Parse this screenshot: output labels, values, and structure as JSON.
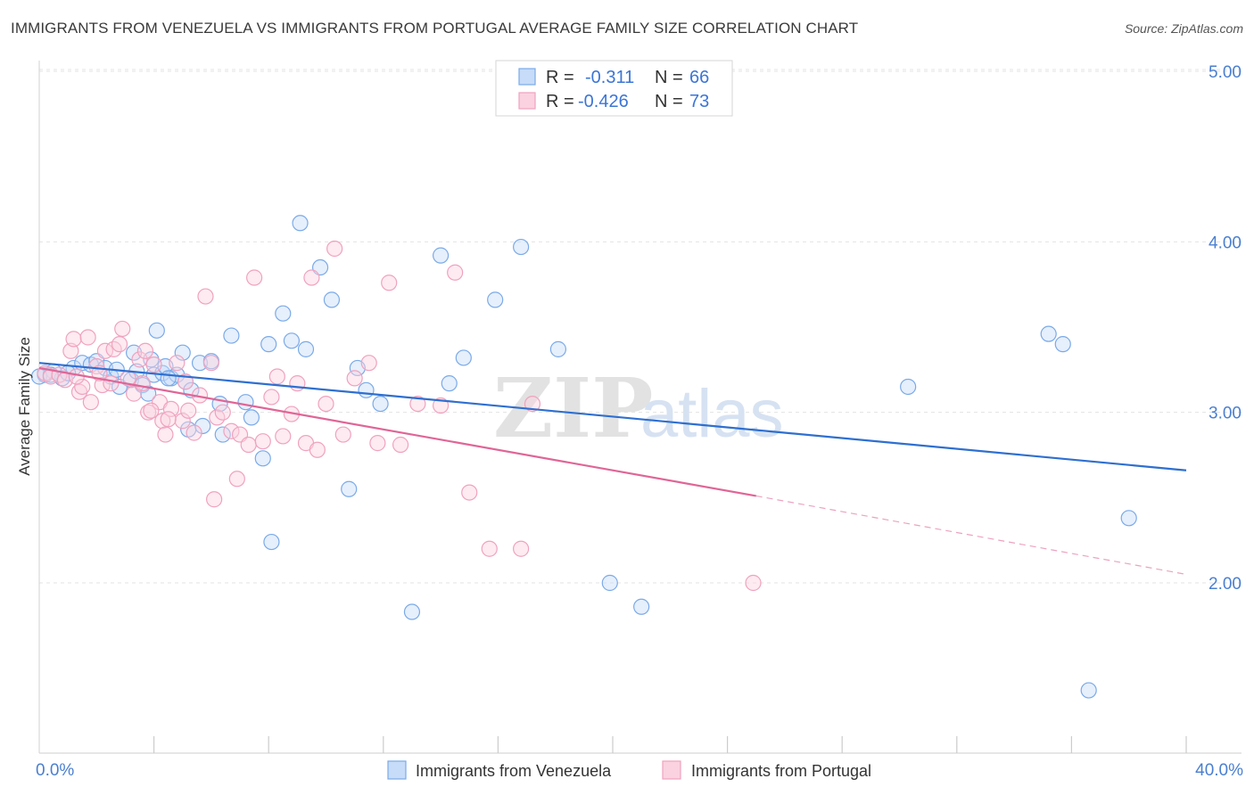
{
  "chart_data": {
    "type": "scatter",
    "title": "IMMIGRANTS FROM VENEZUELA VS IMMIGRANTS FROM PORTUGAL AVERAGE FAMILY SIZE CORRELATION CHART",
    "source": "Source: ZipAtlas.com",
    "watermark": [
      "ZIP",
      "atlas"
    ],
    "ylabel": "Average Family Size",
    "xlim": [
      0,
      40
    ],
    "ylim": [
      1.0,
      5.1
    ],
    "x_tick_labels": [
      {
        "value": 0,
        "label": "0.0%"
      },
      {
        "value": 40,
        "label": "40.0%"
      }
    ],
    "y_ticks": [
      {
        "value": 2.0,
        "label": "2.00"
      },
      {
        "value": 3.0,
        "label": "3.00"
      },
      {
        "value": 4.0,
        "label": "4.00"
      },
      {
        "value": 5.0,
        "label": "5.00"
      }
    ],
    "grid": true,
    "legend_position": "top-center",
    "stats": [
      {
        "r_label": "R =",
        "r_value": "-0.311",
        "n_label": "N =",
        "n_value": "66"
      },
      {
        "r_label": "R =",
        "r_value": "-0.426",
        "n_label": "N =",
        "n_value": "73"
      }
    ],
    "series": [
      {
        "name": "Immigrants from Venezuela",
        "color": "#7aaae8",
        "line_color": "#2e6fd0",
        "trend": {
          "x0": 0,
          "y0": 3.29,
          "x1": 40,
          "y1": 2.66
        },
        "points": [
          [
            0.2,
            3.22
          ],
          [
            0.5,
            3.24
          ],
          [
            0.8,
            3.2
          ],
          [
            1.2,
            3.26
          ],
          [
            1.5,
            3.29
          ],
          [
            1.8,
            3.28
          ],
          [
            2.0,
            3.3
          ],
          [
            2.3,
            3.26
          ],
          [
            2.5,
            3.21
          ],
          [
            2.8,
            3.15
          ],
          [
            3.2,
            3.19
          ],
          [
            3.4,
            3.24
          ],
          [
            3.6,
            3.16
          ],
          [
            3.8,
            3.11
          ],
          [
            4.0,
            3.22
          ],
          [
            4.1,
            3.48
          ],
          [
            4.3,
            3.23
          ],
          [
            4.4,
            3.27
          ],
          [
            4.6,
            3.2
          ],
          [
            4.8,
            3.22
          ],
          [
            5.0,
            3.35
          ],
          [
            5.1,
            3.18
          ],
          [
            5.3,
            3.13
          ],
          [
            5.6,
            3.29
          ],
          [
            6.0,
            3.3
          ],
          [
            6.3,
            3.05
          ],
          [
            6.7,
            3.45
          ],
          [
            7.2,
            3.06
          ],
          [
            7.4,
            2.97
          ],
          [
            7.8,
            2.73
          ],
          [
            8.0,
            3.4
          ],
          [
            8.1,
            2.24
          ],
          [
            8.5,
            3.58
          ],
          [
            8.8,
            3.42
          ],
          [
            9.1,
            4.11
          ],
          [
            9.3,
            3.37
          ],
          [
            9.8,
            3.85
          ],
          [
            10.2,
            3.66
          ],
          [
            10.8,
            2.55
          ],
          [
            11.1,
            3.26
          ],
          [
            11.4,
            3.13
          ],
          [
            11.9,
            3.05
          ],
          [
            13.0,
            1.83
          ],
          [
            14.0,
            3.92
          ],
          [
            14.3,
            3.17
          ],
          [
            14.8,
            3.32
          ],
          [
            15.9,
            3.66
          ],
          [
            16.8,
            3.97
          ],
          [
            18.1,
            3.37
          ],
          [
            19.9,
            2.0
          ],
          [
            21.0,
            1.86
          ],
          [
            30.3,
            3.15
          ],
          [
            35.2,
            3.46
          ],
          [
            35.7,
            3.4
          ],
          [
            36.6,
            1.37
          ],
          [
            38.0,
            2.38
          ],
          [
            1.0,
            3.23
          ],
          [
            2.7,
            3.25
          ],
          [
            3.3,
            3.35
          ],
          [
            4.5,
            3.2
          ],
          [
            5.2,
            2.9
          ],
          [
            5.7,
            2.92
          ],
          [
            6.4,
            2.87
          ],
          [
            0.0,
            3.21
          ],
          [
            0.4,
            3.22
          ],
          [
            3.9,
            3.31
          ]
        ]
      },
      {
        "name": "Immigrants from Portugal",
        "color": "#f0a2be",
        "line_color": "#e06596",
        "trend": {
          "x0": 0,
          "y0": 3.26,
          "x1": 25,
          "y1": 2.51,
          "dashed_x1": 40,
          "dashed_y1": 2.05
        },
        "points": [
          [
            0.2,
            3.23
          ],
          [
            0.4,
            3.21
          ],
          [
            0.7,
            3.22
          ],
          [
            0.9,
            3.19
          ],
          [
            1.1,
            3.36
          ],
          [
            1.2,
            3.43
          ],
          [
            1.4,
            3.12
          ],
          [
            1.5,
            3.15
          ],
          [
            1.7,
            3.44
          ],
          [
            1.8,
            3.06
          ],
          [
            2.0,
            3.27
          ],
          [
            2.2,
            3.16
          ],
          [
            2.3,
            3.36
          ],
          [
            2.5,
            3.17
          ],
          [
            2.6,
            3.37
          ],
          [
            2.8,
            3.4
          ],
          [
            2.9,
            3.49
          ],
          [
            3.1,
            3.2
          ],
          [
            3.3,
            3.11
          ],
          [
            3.5,
            3.31
          ],
          [
            3.7,
            3.36
          ],
          [
            3.8,
            3.0
          ],
          [
            4.0,
            3.28
          ],
          [
            4.2,
            3.06
          ],
          [
            4.3,
            2.95
          ],
          [
            4.4,
            2.87
          ],
          [
            4.6,
            3.02
          ],
          [
            4.8,
            3.29
          ],
          [
            5.0,
            2.95
          ],
          [
            5.2,
            3.01
          ],
          [
            5.4,
            2.88
          ],
          [
            5.6,
            3.1
          ],
          [
            5.8,
            3.68
          ],
          [
            6.0,
            3.29
          ],
          [
            6.2,
            2.97
          ],
          [
            6.4,
            3.0
          ],
          [
            6.7,
            2.89
          ],
          [
            6.9,
            2.61
          ],
          [
            7.0,
            2.87
          ],
          [
            7.3,
            2.81
          ],
          [
            7.5,
            3.79
          ],
          [
            7.8,
            2.83
          ],
          [
            8.1,
            3.09
          ],
          [
            8.3,
            3.21
          ],
          [
            8.5,
            2.86
          ],
          [
            8.8,
            2.99
          ],
          [
            9.0,
            3.17
          ],
          [
            9.3,
            2.82
          ],
          [
            9.5,
            3.79
          ],
          [
            9.7,
            2.78
          ],
          [
            10.0,
            3.05
          ],
          [
            10.3,
            3.96
          ],
          [
            10.6,
            2.87
          ],
          [
            11.0,
            3.2
          ],
          [
            11.5,
            3.29
          ],
          [
            11.8,
            2.82
          ],
          [
            12.2,
            3.76
          ],
          [
            12.6,
            2.81
          ],
          [
            13.2,
            3.05
          ],
          [
            14.0,
            3.04
          ],
          [
            14.5,
            3.82
          ],
          [
            15.0,
            2.53
          ],
          [
            15.7,
            2.2
          ],
          [
            16.8,
            2.2
          ],
          [
            17.2,
            3.05
          ],
          [
            24.9,
            2.0
          ],
          [
            6.1,
            2.49
          ],
          [
            3.9,
            3.01
          ],
          [
            4.5,
            2.96
          ],
          [
            2.1,
            3.23
          ],
          [
            1.3,
            3.21
          ],
          [
            3.6,
            3.17
          ],
          [
            5.1,
            3.18
          ]
        ]
      }
    ]
  }
}
